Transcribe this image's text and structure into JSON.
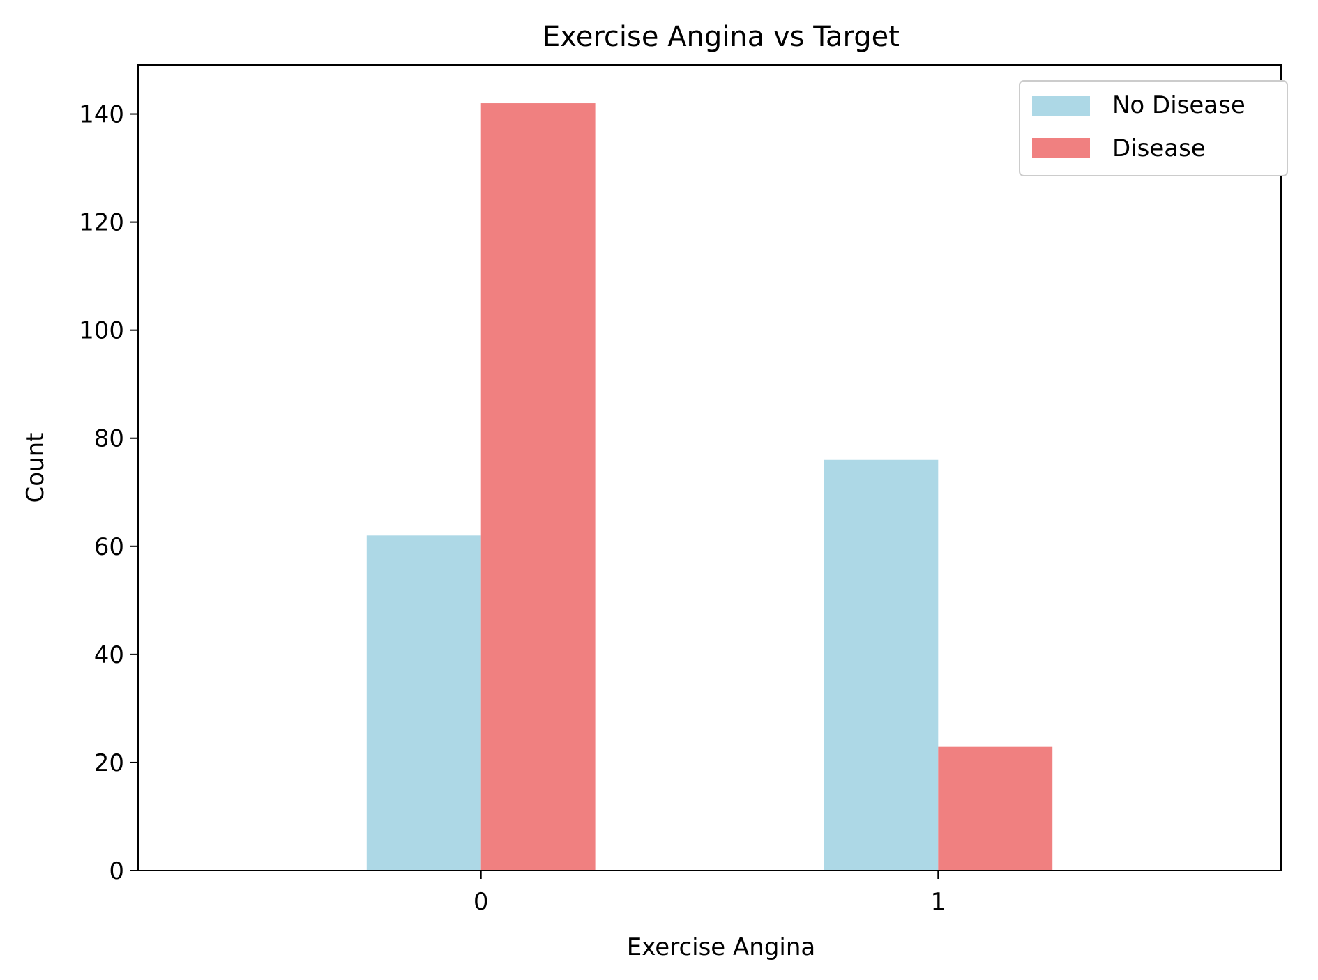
{
  "chart_data": {
    "type": "bar",
    "title": "Exercise Angina vs Target",
    "xlabel": "Exercise Angina",
    "ylabel": "Count",
    "categories": [
      "0",
      "1"
    ],
    "series": [
      {
        "name": "No Disease",
        "values": [
          62,
          76
        ],
        "color": "#add8e6"
      },
      {
        "name": "Disease",
        "values": [
          142,
          23
        ],
        "color": "#f08080"
      }
    ],
    "ylim": [
      0,
      149.1
    ],
    "yticks": [
      "0",
      "20",
      "40",
      "60",
      "80",
      "100",
      "120",
      "140"
    ],
    "grid": false,
    "legend_position": "top-right"
  }
}
